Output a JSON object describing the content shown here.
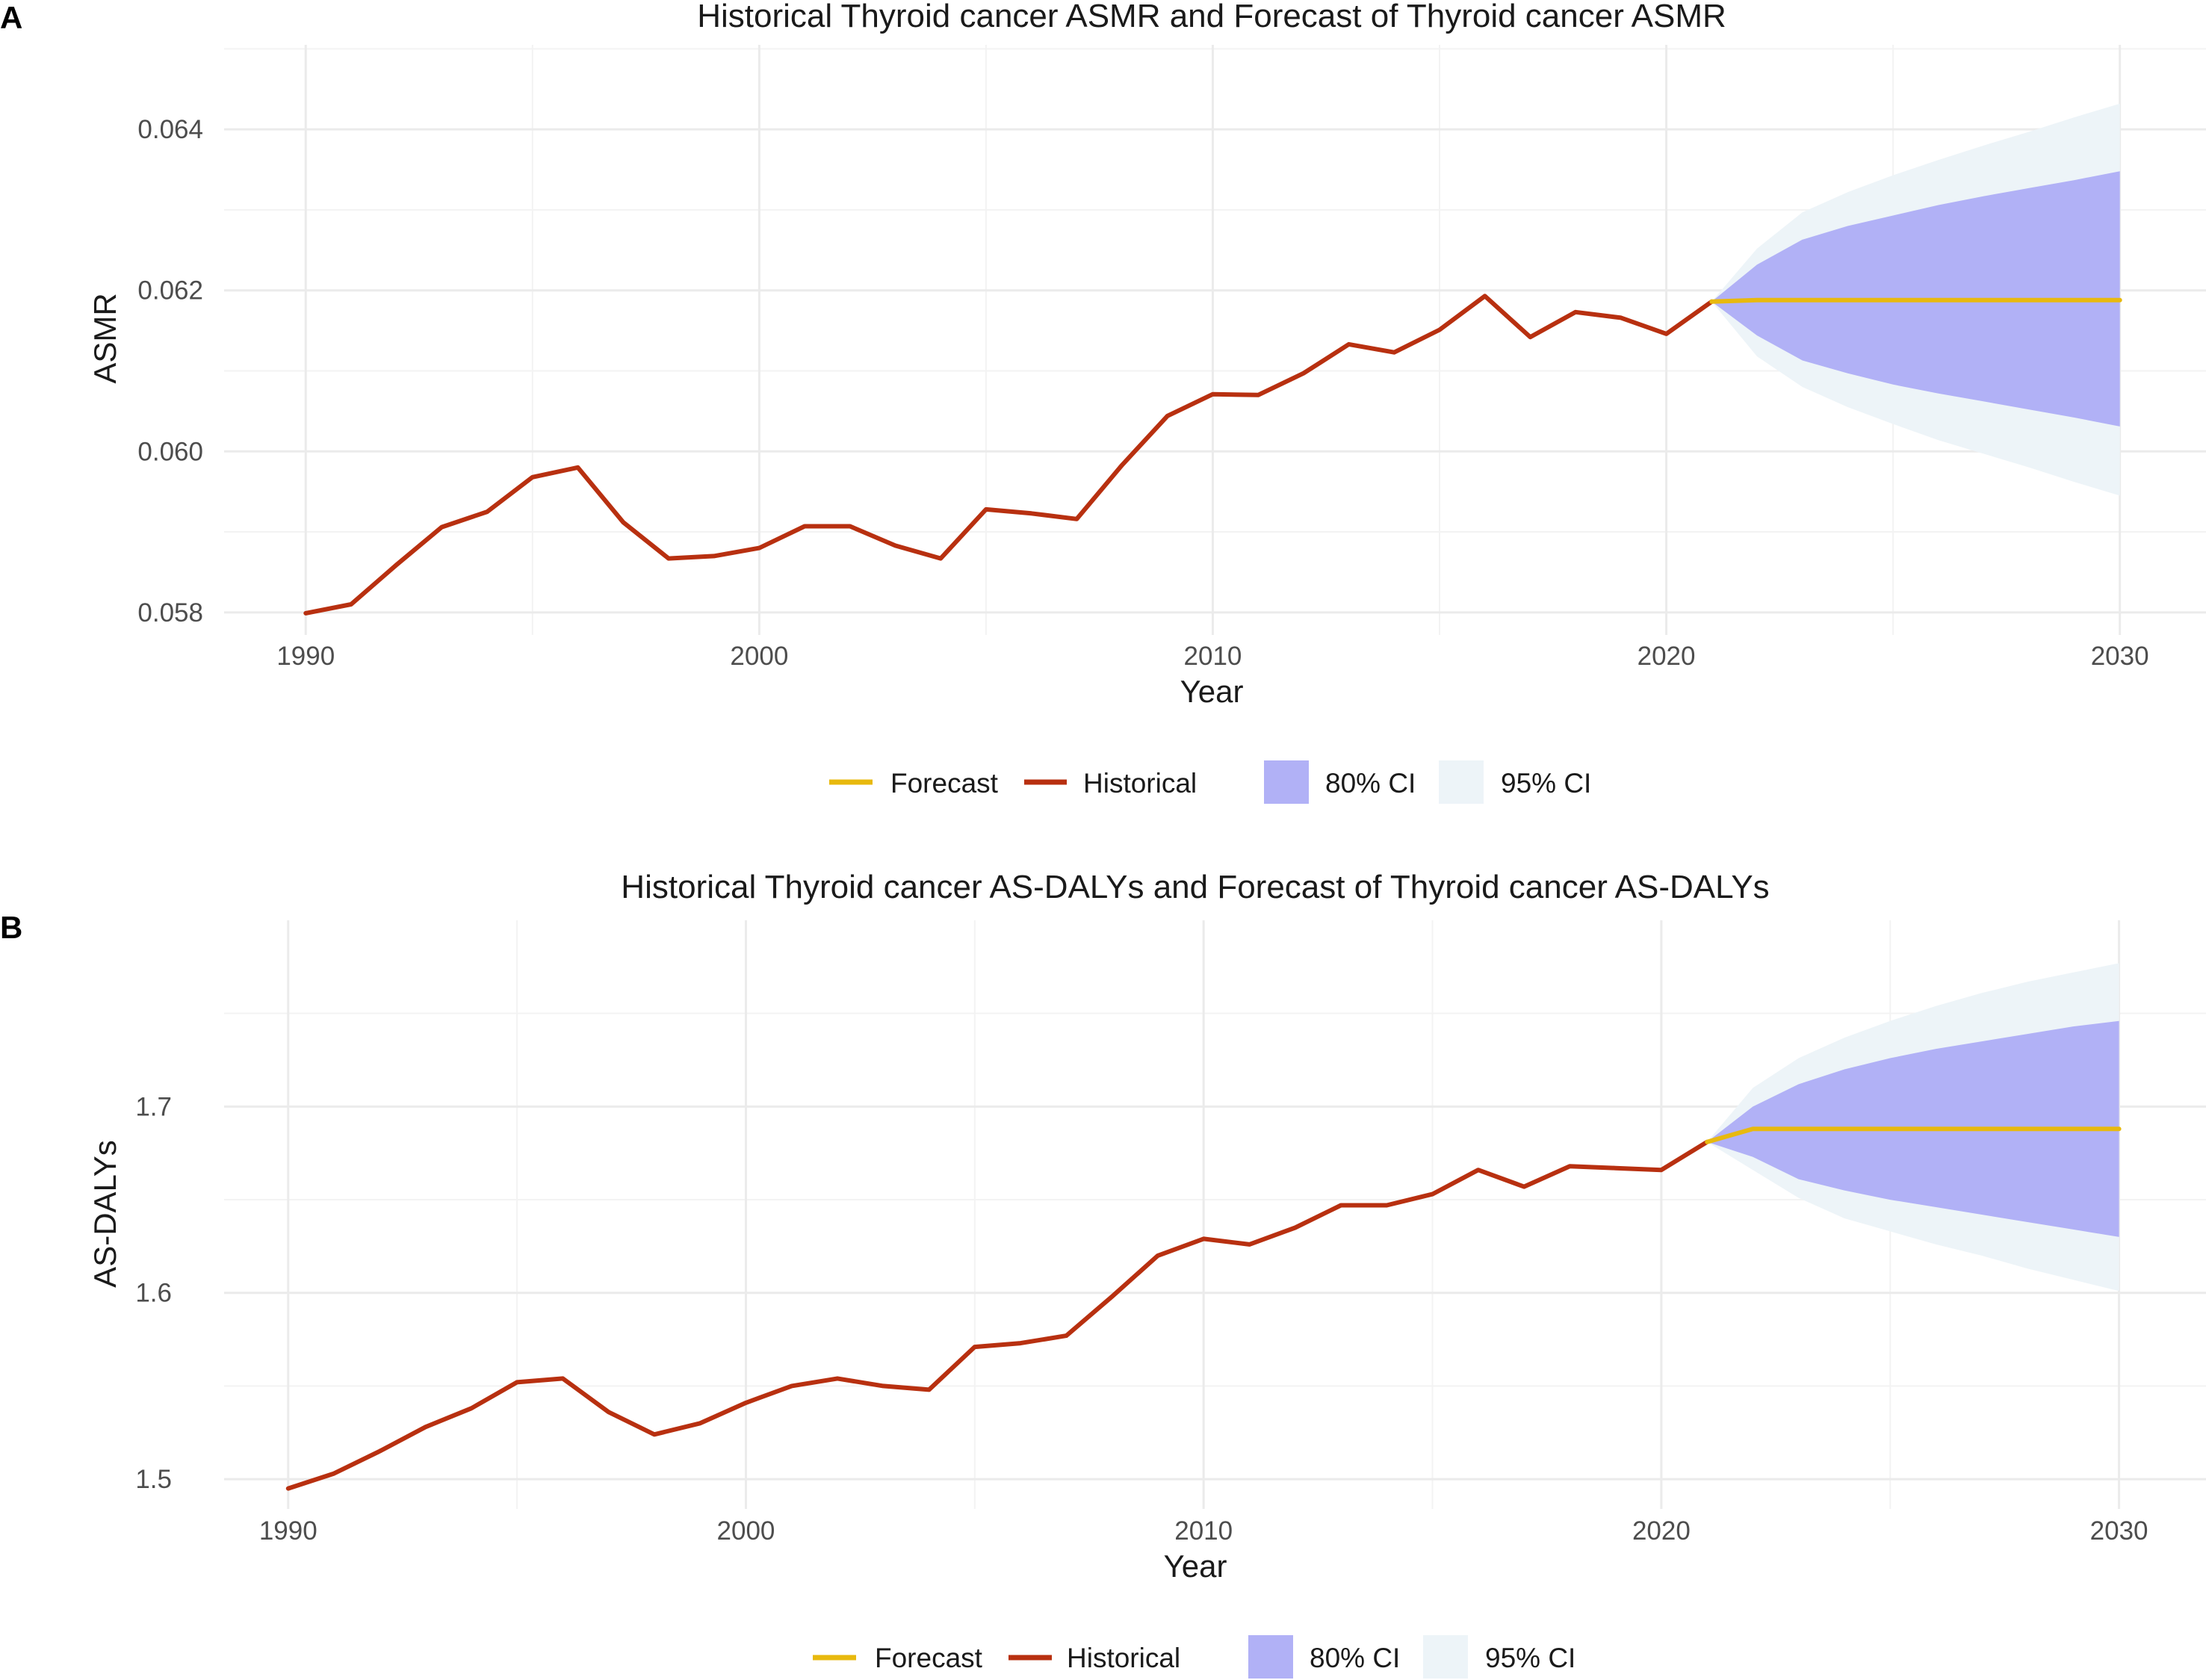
{
  "panels": [
    {
      "letter": "A"
    },
    {
      "letter": "B"
    }
  ],
  "legend": {
    "forecast": "Forecast",
    "historical": "Historical",
    "ci80": "80% CI",
    "ci95": "95% CI"
  },
  "colors": {
    "historical": "#b83010",
    "forecast": "#e8b90e",
    "ci80": "#b1b1f6",
    "ci95": "#edf4f8",
    "grid_major": "#ebebeb",
    "grid_minor": "#f3f3f3"
  },
  "chart_data": [
    {
      "type": "line",
      "title": "Historical  Thyroid cancer ASMR and Forecast of  Thyroid cancer ASMR",
      "xlabel": "Year",
      "ylabel": "ASMR",
      "xlim": [
        1988.2,
        2031.9
      ],
      "ylim": [
        0.05772,
        0.06505
      ],
      "xticks": [
        1990,
        2000,
        2010,
        2020,
        2030
      ],
      "xtick_labels": [
        "1990",
        "2000",
        "2010",
        "2020",
        "2030"
      ],
      "yticks": [
        0.058,
        0.06,
        0.062,
        0.064
      ],
      "ytick_labels": [
        "0.058",
        "0.060",
        "0.062",
        "0.064"
      ],
      "grid": true,
      "legend_position": "bottom",
      "series": [
        {
          "name": "Historical",
          "x": [
            1990,
            1991,
            1992,
            1993,
            1994,
            1995,
            1996,
            1997,
            1998,
            1999,
            2000,
            2001,
            2002,
            2003,
            2004,
            2005,
            2006,
            2007,
            2008,
            2009,
            2010,
            2011,
            2012,
            2013,
            2014,
            2015,
            2016,
            2017,
            2018,
            2019,
            2020,
            2021
          ],
          "values": [
            0.05799,
            0.0581,
            0.05859,
            0.05906,
            0.05925,
            0.05968,
            0.0598,
            0.05912,
            0.05867,
            0.0587,
            0.0588,
            0.05907,
            0.05907,
            0.05883,
            0.05867,
            0.05928,
            0.05923,
            0.05916,
            0.05983,
            0.06044,
            0.06071,
            0.0607,
            0.06097,
            0.06133,
            0.06123,
            0.06151,
            0.06193,
            0.06142,
            0.06173,
            0.06166,
            0.06146,
            0.06186
          ]
        },
        {
          "name": "Forecast",
          "x": [
            2021,
            2022,
            2023,
            2024,
            2025,
            2026,
            2027,
            2028,
            2029,
            2030
          ],
          "values": [
            0.06186,
            0.06188,
            0.06188,
            0.06188,
            0.06188,
            0.06188,
            0.06188,
            0.06188,
            0.06188,
            0.06188
          ]
        },
        {
          "name": "80% CI",
          "x": [
            2021,
            2022,
            2023,
            2024,
            2025,
            2026,
            2027,
            2028,
            2029,
            2030
          ],
          "lower": [
            0.06186,
            0.06144,
            0.06113,
            0.06097,
            0.06083,
            0.06072,
            0.06062,
            0.06052,
            0.06042,
            0.06031
          ],
          "upper": [
            0.06186,
            0.06232,
            0.06263,
            0.0628,
            0.06293,
            0.06306,
            0.06317,
            0.06327,
            0.06337,
            0.06348
          ]
        },
        {
          "name": "95% CI",
          "x": [
            2021,
            2022,
            2023,
            2024,
            2025,
            2026,
            2027,
            2028,
            2029,
            2030
          ],
          "lower": [
            0.06186,
            0.06118,
            0.0608,
            0.06055,
            0.06034,
            0.06014,
            0.05997,
            0.0598,
            0.05962,
            0.05945
          ],
          "upper": [
            0.06186,
            0.06252,
            0.06297,
            0.06322,
            0.06343,
            0.06362,
            0.0638,
            0.06397,
            0.06415,
            0.06432
          ]
        }
      ]
    },
    {
      "type": "line",
      "title": "Historical  Thyroid cancer AS-DALYs and Forecast of  Thyroid cancer AS-DALYs",
      "xlabel": "Year",
      "ylabel": "AS-DALYs",
      "xlim": [
        1988.6,
        2031.9
      ],
      "ylim": [
        1.484,
        1.8
      ],
      "xticks": [
        1990,
        2000,
        2010,
        2020,
        2030
      ],
      "xtick_labels": [
        "1990",
        "2000",
        "2010",
        "2020",
        "2030"
      ],
      "yticks": [
        1.5,
        1.6,
        1.7
      ],
      "ytick_labels": [
        "1.5",
        "1.6",
        "1.7"
      ],
      "grid": true,
      "legend_position": "bottom",
      "series": [
        {
          "name": "Historical",
          "x": [
            1990,
            1991,
            1992,
            1993,
            1994,
            1995,
            1996,
            1997,
            1998,
            1999,
            2000,
            2001,
            2002,
            2003,
            2004,
            2005,
            2006,
            2007,
            2008,
            2009,
            2010,
            2011,
            2012,
            2013,
            2014,
            2015,
            2016,
            2017,
            2018,
            2019,
            2020,
            2021
          ],
          "values": [
            1.495,
            1.503,
            1.515,
            1.528,
            1.538,
            1.552,
            1.554,
            1.536,
            1.524,
            1.53,
            1.541,
            1.55,
            1.554,
            1.55,
            1.548,
            1.571,
            1.573,
            1.577,
            1.598,
            1.62,
            1.629,
            1.626,
            1.635,
            1.647,
            1.647,
            1.653,
            1.666,
            1.657,
            1.668,
            1.667,
            1.666,
            1.681
          ]
        },
        {
          "name": "Forecast",
          "x": [
            2021,
            2022,
            2023,
            2024,
            2025,
            2026,
            2027,
            2028,
            2029,
            2030
          ],
          "values": [
            1.681,
            1.688,
            1.688,
            1.688,
            1.688,
            1.688,
            1.688,
            1.688,
            1.688,
            1.688
          ]
        },
        {
          "name": "80% CI",
          "x": [
            2021,
            2022,
            2023,
            2024,
            2025,
            2026,
            2027,
            2028,
            2029,
            2030
          ],
          "lower": [
            1.681,
            1.673,
            1.661,
            1.655,
            1.65,
            1.646,
            1.642,
            1.638,
            1.634,
            1.63
          ],
          "upper": [
            1.681,
            1.7,
            1.712,
            1.72,
            1.726,
            1.731,
            1.735,
            1.739,
            1.743,
            1.746
          ]
        },
        {
          "name": "95% CI",
          "x": [
            2021,
            2022,
            2023,
            2024,
            2025,
            2026,
            2027,
            2028,
            2029,
            2030
          ],
          "lower": [
            1.681,
            1.666,
            1.651,
            1.64,
            1.633,
            1.626,
            1.62,
            1.613,
            1.607,
            1.601
          ],
          "upper": [
            1.681,
            1.71,
            1.726,
            1.737,
            1.746,
            1.754,
            1.761,
            1.767,
            1.772,
            1.777
          ]
        }
      ]
    }
  ]
}
